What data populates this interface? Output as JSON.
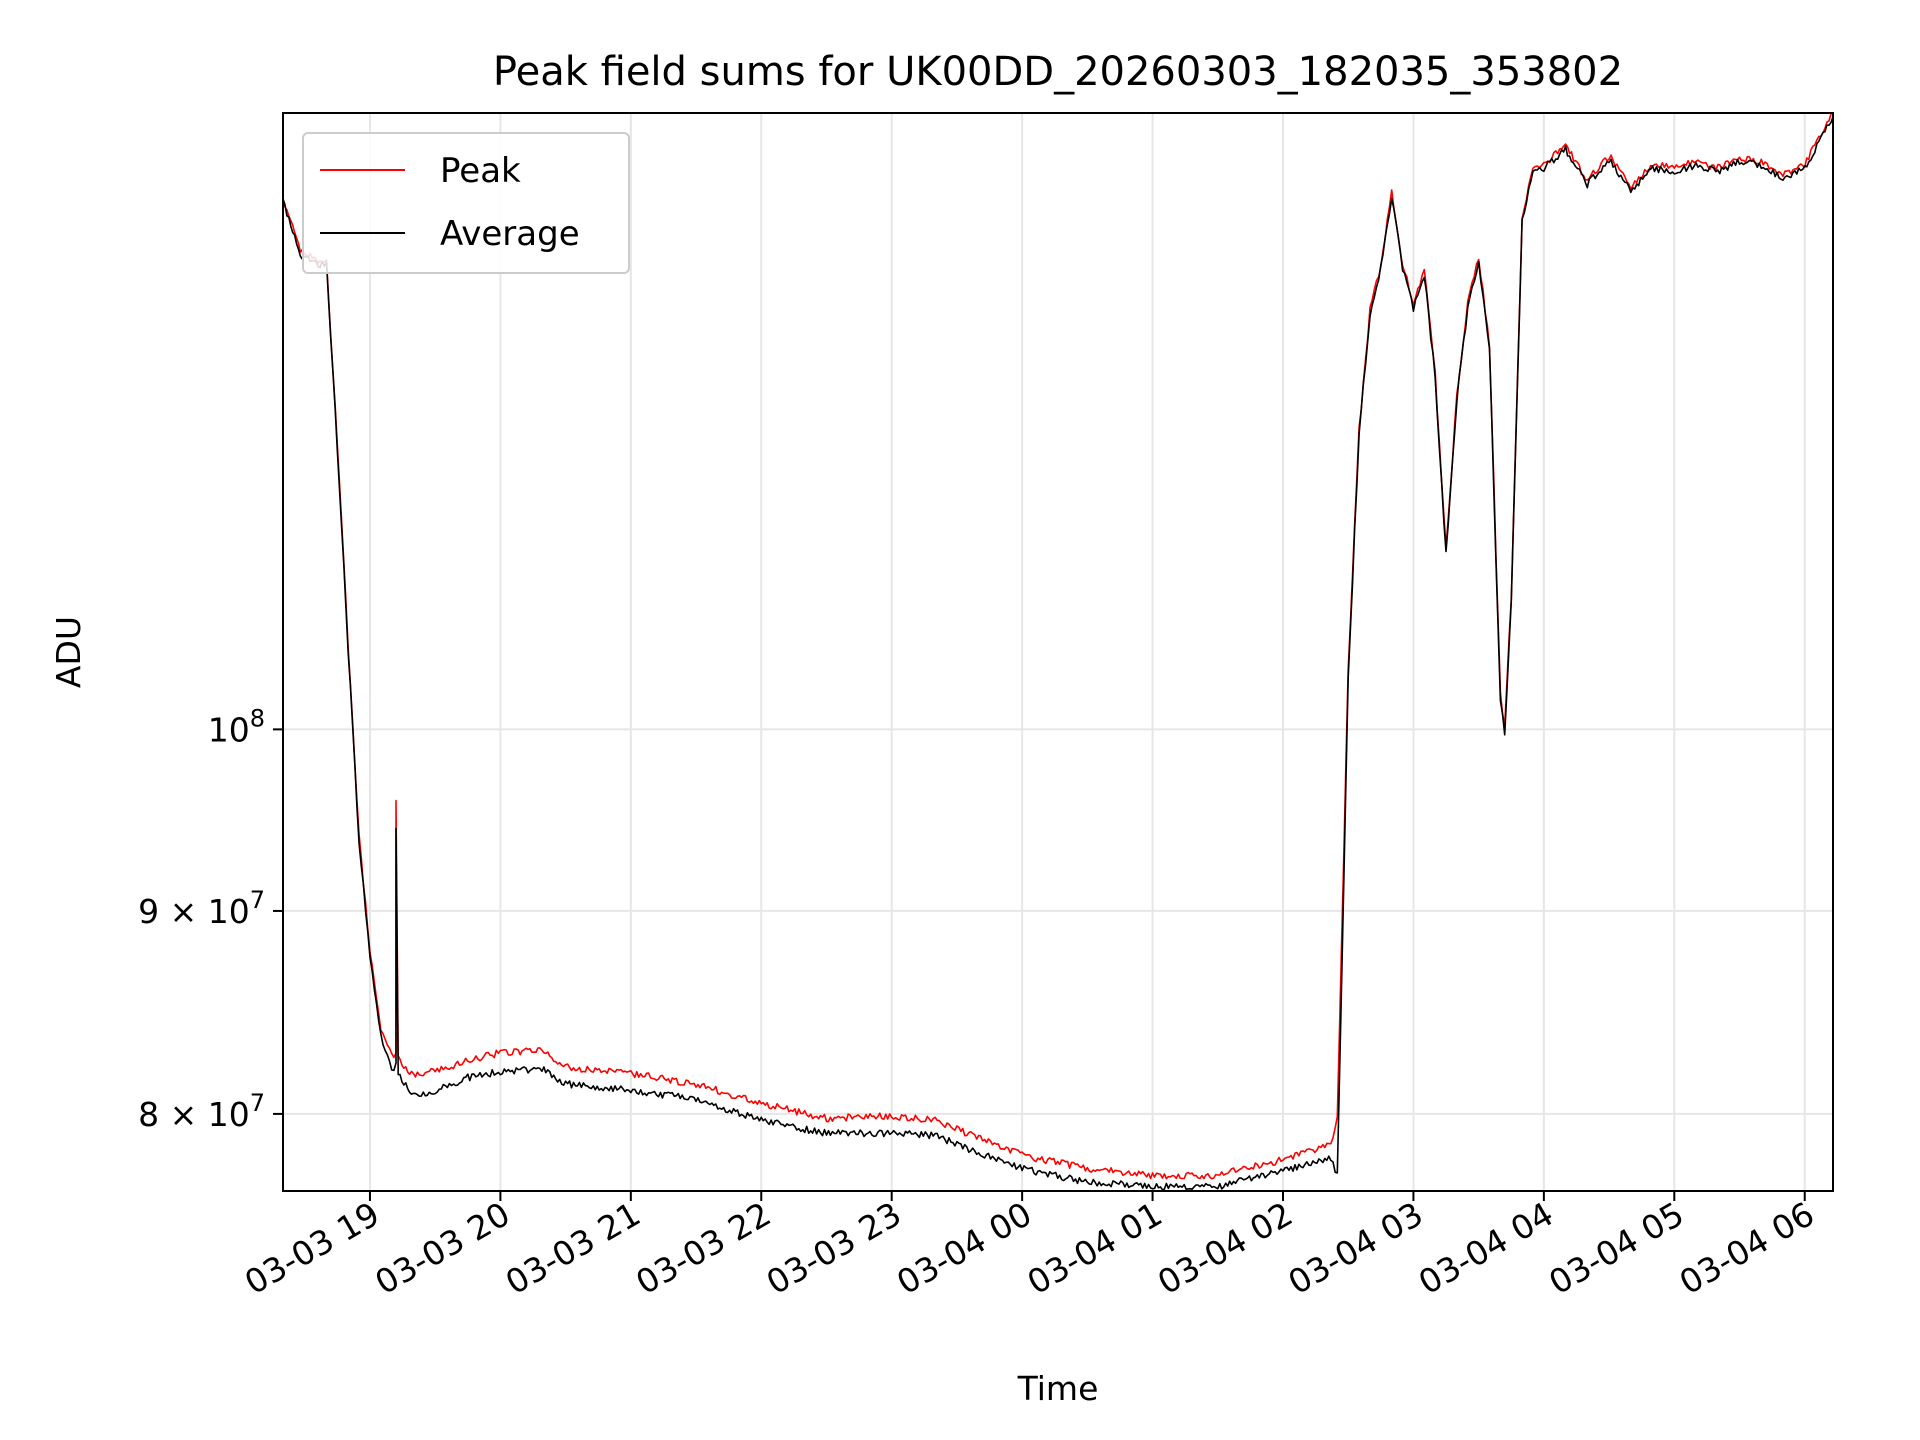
{
  "chart_data": {
    "type": "line",
    "title": "Peak field sums for UK00DD_20260303_182035_353802",
    "xlabel": "Time",
    "ylabel": "ADU",
    "y_scale": "log",
    "grid": true,
    "legend_position": "top-left",
    "xlim": [
      "2026-03-03 18:20",
      "2026-03-04 06:13"
    ],
    "ylim": [
      76500000,
      143000000
    ],
    "x_ticks": [
      {
        "value": "2026-03-03 19:00",
        "label": "03-03 19"
      },
      {
        "value": "2026-03-03 20:00",
        "label": "03-03 20"
      },
      {
        "value": "2026-03-03 21:00",
        "label": "03-03 21"
      },
      {
        "value": "2026-03-03 22:00",
        "label": "03-03 22"
      },
      {
        "value": "2026-03-03 23:00",
        "label": "03-03 23"
      },
      {
        "value": "2026-03-04 00:00",
        "label": "03-04 00"
      },
      {
        "value": "2026-03-04 01:00",
        "label": "03-04 01"
      },
      {
        "value": "2026-03-04 02:00",
        "label": "03-04 02"
      },
      {
        "value": "2026-03-04 03:00",
        "label": "03-04 03"
      },
      {
        "value": "2026-03-04 04:00",
        "label": "03-04 04"
      },
      {
        "value": "2026-03-04 05:00",
        "label": "03-04 05"
      },
      {
        "value": "2026-03-04 06:00",
        "label": "03-04 06"
      }
    ],
    "y_ticks": [
      {
        "value": 80000000,
        "mantissa": "8",
        "base": "10",
        "exponent": "7"
      },
      {
        "value": 90000000,
        "mantissa": "9",
        "base": "10",
        "exponent": "7"
      },
      {
        "value": 100000000,
        "mantissa": "",
        "base": "10",
        "exponent": "8"
      }
    ],
    "x": [
      "2026-03-03 18:20",
      "2026-03-03 18:28",
      "2026-03-03 18:37",
      "2026-03-03 18:40",
      "2026-03-03 18:45",
      "2026-03-03 18:50",
      "2026-03-03 18:55",
      "2026-03-03 19:00",
      "2026-03-03 19:05",
      "2026-03-03 19:10",
      "2026-03-03 19:12",
      "2026-03-03 19:12",
      "2026-03-03 19:13",
      "2026-03-03 19:20",
      "2026-03-03 19:30",
      "2026-03-03 19:45",
      "2026-03-03 20:00",
      "2026-03-03 20:20",
      "2026-03-03 20:30",
      "2026-03-03 21:00",
      "2026-03-03 21:30",
      "2026-03-03 22:00",
      "2026-03-03 22:30",
      "2026-03-03 23:00",
      "2026-03-03 23:20",
      "2026-03-03 23:40",
      "2026-03-04 00:00",
      "2026-03-04 00:30",
      "2026-03-04 01:00",
      "2026-03-04 01:30",
      "2026-03-04 02:00",
      "2026-03-04 02:22",
      "2026-03-04 02:25",
      "2026-03-04 02:30",
      "2026-03-04 02:35",
      "2026-03-04 02:40",
      "2026-03-04 02:45",
      "2026-03-04 02:50",
      "2026-03-04 02:55",
      "2026-03-04 03:00",
      "2026-03-04 03:05",
      "2026-03-04 03:10",
      "2026-03-04 03:13",
      "2026-03-04 03:15",
      "2026-03-04 03:20",
      "2026-03-04 03:25",
      "2026-03-04 03:30",
      "2026-03-04 03:35",
      "2026-03-04 03:40",
      "2026-03-04 03:42",
      "2026-03-04 03:45",
      "2026-03-04 03:50",
      "2026-03-04 03:55",
      "2026-03-04 04:00",
      "2026-03-04 04:10",
      "2026-03-04 04:20",
      "2026-03-04 04:30",
      "2026-03-04 04:40",
      "2026-03-04 04:50",
      "2026-03-04 05:00",
      "2026-03-04 05:10",
      "2026-03-04 05:20",
      "2026-03-04 05:30",
      "2026-03-04 05:40",
      "2026-03-04 05:50",
      "2026-03-04 06:00",
      "2026-03-04 06:13"
    ],
    "series": [
      {
        "name": "Peak",
        "color": "#ff0000",
        "values": [
          136000000,
          132000000,
          131200000,
          131300000,
          118000000,
          105000000,
          94000000,
          88000000,
          84000000,
          82700000,
          82900000,
          96000000,
          82600000,
          81800000,
          82000000,
          82500000,
          82900000,
          83000000,
          82200000,
          81900000,
          81400000,
          80500000,
          79800000,
          79900000,
          79700000,
          78900000,
          78100000,
          77500000,
          77200000,
          77200000,
          77900000,
          78600000,
          79800000,
          103500000,
          119000000,
          127500000,
          131000000,
          136500000,
          131000000,
          128000000,
          130500000,
          123000000,
          115500000,
          111000000,
          121500000,
          128000000,
          131500000,
          125000000,
          102000000,
          100000000,
          108000000,
          134500000,
          138500000,
          138800000,
          140300000,
          137500000,
          139500000,
          137000000,
          138800000,
          138500000,
          139000000,
          138500000,
          139300000,
          139000000,
          138000000,
          138800000,
          143000000
        ]
      },
      {
        "name": "Average",
        "color": "#000000",
        "values": [
          135800000,
          131700000,
          130900000,
          131000000,
          117700000,
          104700000,
          93700000,
          87700000,
          83700000,
          82100000,
          82300000,
          94300000,
          81900000,
          80800000,
          81100000,
          81700000,
          82000000,
          82100000,
          81400000,
          81100000,
          80700000,
          79700000,
          79100000,
          79100000,
          79000000,
          78200000,
          77500000,
          76900000,
          76700000,
          76700000,
          77400000,
          78000000,
          77200000,
          103200000,
          118700000,
          127200000,
          130700000,
          136200000,
          130700000,
          127700000,
          130200000,
          122700000,
          115200000,
          110700000,
          121200000,
          127700000,
          131200000,
          124700000,
          101700000,
          99700000,
          107700000,
          134200000,
          138200000,
          138500000,
          140000000,
          137200000,
          139200000,
          136700000,
          138500000,
          138200000,
          138700000,
          138200000,
          139000000,
          138700000,
          137700000,
          138500000,
          142700000
        ]
      }
    ]
  }
}
